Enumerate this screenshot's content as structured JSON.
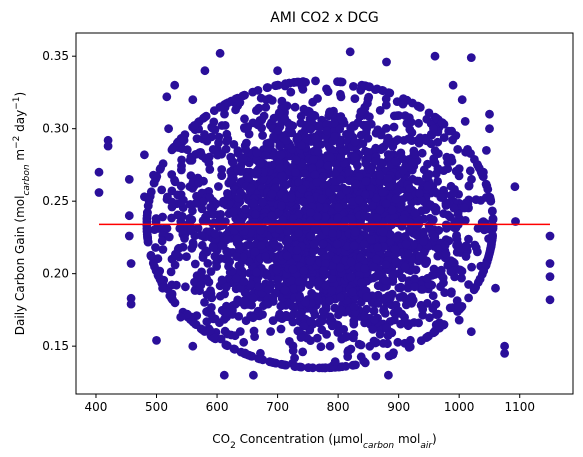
{
  "chart_data": {
    "type": "scatter",
    "title": "AMI CO2 x DCG",
    "xlabel": {
      "parts": [
        {
          "text": "CO",
          "style": "normal"
        },
        {
          "text": "2",
          "style": "sub"
        },
        {
          "text": " Concentration (µmol",
          "style": "normal"
        },
        {
          "text": "carbon",
          "style": "sub-italic"
        },
        {
          "text": " mol",
          "style": "normal"
        },
        {
          "text": "air",
          "style": "sub-italic"
        },
        {
          "text": ")",
          "style": "normal"
        }
      ]
    },
    "ylabel": {
      "parts": [
        {
          "text": "Daily Carbon Gain (mol",
          "style": "normal"
        },
        {
          "text": "carbon",
          "style": "sub-italic"
        },
        {
          "text": " m",
          "style": "normal"
        },
        {
          "text": "−2",
          "style": "sup"
        },
        {
          "text": " day",
          "style": "normal"
        },
        {
          "text": "−1",
          "style": "sup"
        },
        {
          "text": ")",
          "style": "normal"
        }
      ]
    },
    "xlim": [
      367,
      1188
    ],
    "ylim": [
      0.117,
      0.366
    ],
    "xticks": [
      {
        "value": 400,
        "label": "400"
      },
      {
        "value": 500,
        "label": "500"
      },
      {
        "value": 600,
        "label": "600"
      },
      {
        "value": 700,
        "label": "700"
      },
      {
        "value": 800,
        "label": "800"
      },
      {
        "value": 900,
        "label": "900"
      },
      {
        "value": 1000,
        "label": "1000"
      },
      {
        "value": 1100,
        "label": "1100"
      }
    ],
    "yticks": [
      {
        "value": 0.15,
        "label": "0.15"
      },
      {
        "value": 0.2,
        "label": "0.20"
      },
      {
        "value": 0.25,
        "label": "0.25"
      },
      {
        "value": 0.3,
        "label": "0.30"
      },
      {
        "value": 0.35,
        "label": "0.35"
      }
    ],
    "grid": false,
    "legend": "none",
    "series": [
      {
        "kind": "scatter",
        "color": "#2a0f9a",
        "cloud": {
          "x_center": 770,
          "x_sd": 130,
          "y_center": 0.234,
          "y_sd": 0.045,
          "count": 3000
        },
        "outliers": [
          {
            "x": 405,
            "y": 0.27
          },
          {
            "x": 405,
            "y": 0.256
          },
          {
            "x": 420,
            "y": 0.292
          },
          {
            "x": 420,
            "y": 0.288
          },
          {
            "x": 455,
            "y": 0.24
          },
          {
            "x": 455,
            "y": 0.226
          },
          {
            "x": 455,
            "y": 0.265
          },
          {
            "x": 458,
            "y": 0.207
          },
          {
            "x": 458,
            "y": 0.183
          },
          {
            "x": 458,
            "y": 0.179
          },
          {
            "x": 480,
            "y": 0.282
          },
          {
            "x": 480,
            "y": 0.253
          },
          {
            "x": 500,
            "y": 0.154
          },
          {
            "x": 495,
            "y": 0.268
          },
          {
            "x": 510,
            "y": 0.19
          },
          {
            "x": 517,
            "y": 0.322
          },
          {
            "x": 520,
            "y": 0.3
          },
          {
            "x": 560,
            "y": 0.32
          },
          {
            "x": 580,
            "y": 0.34
          },
          {
            "x": 605,
            "y": 0.352
          },
          {
            "x": 612,
            "y": 0.13
          },
          {
            "x": 660,
            "y": 0.13
          },
          {
            "x": 700,
            "y": 0.34
          },
          {
            "x": 820,
            "y": 0.353
          },
          {
            "x": 880,
            "y": 0.346
          },
          {
            "x": 883,
            "y": 0.13
          },
          {
            "x": 960,
            "y": 0.35
          },
          {
            "x": 1020,
            "y": 0.349
          },
          {
            "x": 1000,
            "y": 0.168
          },
          {
            "x": 1040,
            "y": 0.27
          },
          {
            "x": 1060,
            "y": 0.19
          },
          {
            "x": 1075,
            "y": 0.15
          },
          {
            "x": 1075,
            "y": 0.145
          },
          {
            "x": 1092,
            "y": 0.26
          },
          {
            "x": 1093,
            "y": 0.236
          },
          {
            "x": 1150,
            "y": 0.226
          },
          {
            "x": 1150,
            "y": 0.207
          },
          {
            "x": 1150,
            "y": 0.198
          },
          {
            "x": 1150,
            "y": 0.182
          },
          {
            "x": 1050,
            "y": 0.31
          },
          {
            "x": 1050,
            "y": 0.3
          },
          {
            "x": 1045,
            "y": 0.285
          },
          {
            "x": 1030,
            "y": 0.215
          },
          {
            "x": 1020,
            "y": 0.16
          },
          {
            "x": 560,
            "y": 0.15
          },
          {
            "x": 540,
            "y": 0.17
          },
          {
            "x": 530,
            "y": 0.33
          },
          {
            "x": 990,
            "y": 0.33
          },
          {
            "x": 1005,
            "y": 0.32
          },
          {
            "x": 1010,
            "y": 0.305
          }
        ]
      },
      {
        "kind": "line",
        "color": "#ff0000",
        "points": [
          {
            "x": 405,
            "y": 0.234
          },
          {
            "x": 1150,
            "y": 0.234
          }
        ]
      }
    ]
  }
}
